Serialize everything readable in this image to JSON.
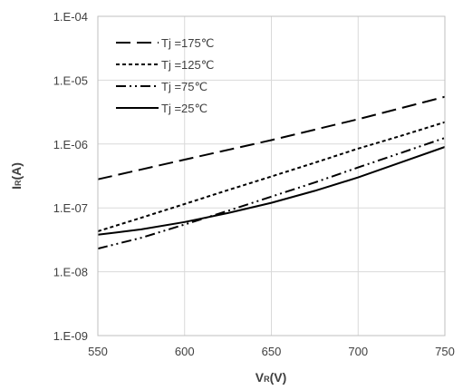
{
  "chart_data": {
    "type": "line",
    "title": "",
    "xlabel": {
      "main": "V",
      "sub": "R",
      "unit": "(V)"
    },
    "ylabel": {
      "main": "I",
      "sub": "R",
      "unit": "(A)"
    },
    "x_scale": "linear",
    "y_scale": "log",
    "xlim": [
      550,
      750
    ],
    "ylim": [
      1e-09,
      0.0001
    ],
    "x_ticks": [
      550,
      600,
      650,
      700,
      750
    ],
    "x_tick_labels": [
      "550",
      "600",
      "650",
      "700",
      "750"
    ],
    "y_ticks": [
      0.0001,
      1e-05,
      1e-06,
      1e-07,
      1e-08,
      1e-09
    ],
    "y_tick_labels": [
      "1.E-04",
      "1.E-05",
      "1.E-06",
      "1.E-07",
      "1.E-08",
      "1.E-09"
    ],
    "grid": "both",
    "legend_position": "top-left",
    "series": [
      {
        "name": "Tj =175℃",
        "dash": "long-dash",
        "x": [
          550,
          600,
          650,
          700,
          750
        ],
        "y": [
          2.8e-07,
          5.7e-07,
          1.15e-06,
          2.45e-06,
          5.5e-06
        ]
      },
      {
        "name": "Tj =125℃",
        "dash": "short-dash",
        "x": [
          550,
          575,
          600,
          625,
          650,
          675,
          700,
          725,
          750
        ],
        "y": [
          4.3e-08,
          7e-08,
          1.15e-07,
          1.9e-07,
          3.1e-07,
          5.1e-07,
          8.5e-07,
          1.35e-06,
          2.2e-06
        ]
      },
      {
        "name": "Tj =75℃",
        "dash": "dash-dot-dot",
        "x": [
          550,
          575,
          600,
          625,
          650,
          675,
          700,
          725,
          750
        ],
        "y": [
          2.3e-08,
          3.4e-08,
          5.5e-08,
          9e-08,
          1.5e-07,
          2.5e-07,
          4.3e-07,
          7.3e-07,
          1.25e-06
        ]
      },
      {
        "name": "Tj =25℃",
        "dash": "solid",
        "x": [
          550,
          575,
          600,
          625,
          650,
          675,
          700,
          725,
          750
        ],
        "y": [
          3.8e-08,
          4.6e-08,
          6e-08,
          8.3e-08,
          1.2e-07,
          1.85e-07,
          3e-07,
          5.2e-07,
          9e-07
        ]
      }
    ]
  }
}
